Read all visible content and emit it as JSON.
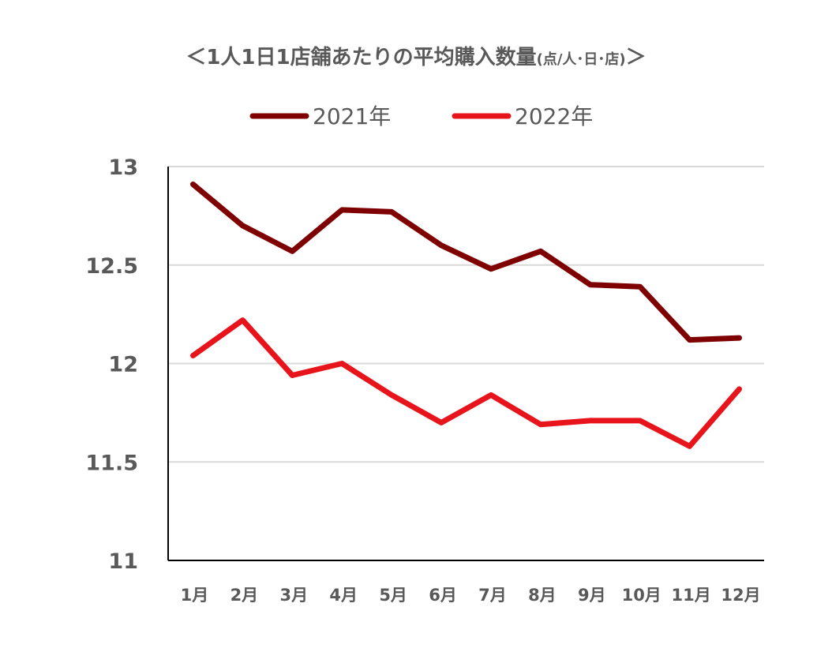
{
  "chart_data": {
    "type": "line",
    "title": "＜1人1日1店舗あたりの平均購入数量",
    "title_unit": "(点/人･日･店)",
    "title_close": "＞",
    "categories": [
      "1月",
      "2月",
      "3月",
      "4月",
      "5月",
      "6月",
      "7月",
      "8月",
      "9月",
      "10月",
      "11月",
      "12月"
    ],
    "series": [
      {
        "name": "2021年",
        "color": "#7f0000",
        "values": [
          12.91,
          12.7,
          12.57,
          12.78,
          12.77,
          12.6,
          12.48,
          12.57,
          12.4,
          12.39,
          12.12,
          12.13
        ]
      },
      {
        "name": "2022年",
        "color": "#e8141b",
        "values": [
          12.04,
          12.22,
          11.94,
          12.0,
          11.84,
          11.7,
          11.84,
          11.69,
          11.71,
          11.71,
          11.58,
          11.87
        ]
      }
    ],
    "ylim": [
      11,
      13
    ],
    "yticks": [
      11,
      11.5,
      12,
      12.5,
      13
    ],
    "ytick_labels": [
      "11",
      "11.5",
      "12",
      "12.5",
      "13"
    ],
    "grid": true,
    "legend_position": "top-center",
    "xlabel": "",
    "ylabel": ""
  }
}
